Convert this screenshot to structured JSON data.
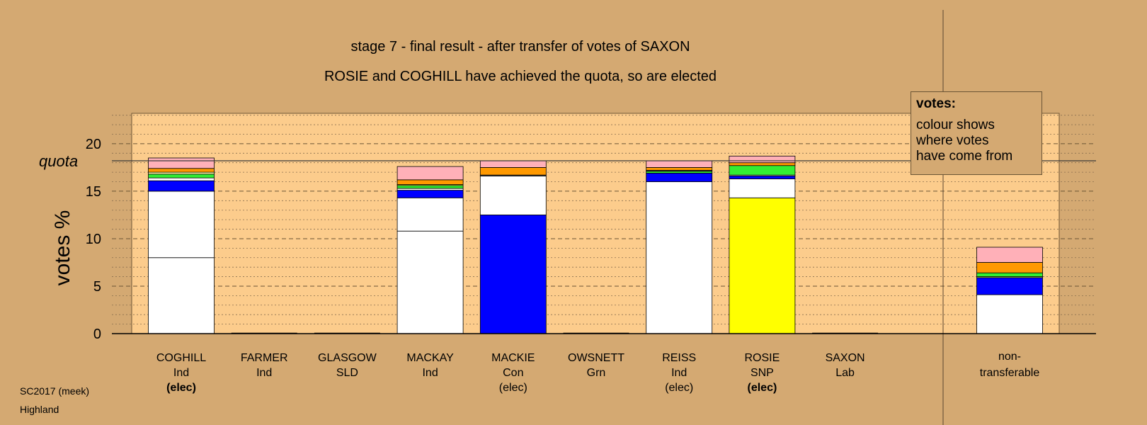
{
  "chart_data": {
    "type": "bar",
    "title": "stage 7 - final result - after transfer of votes of SAXON",
    "subtitle": "ROSIE and COGHILL have achieved the quota, so are elected",
    "ylabel": "votes %",
    "ylim": [
      0,
      23.2
    ],
    "yticks": [
      0,
      5,
      10,
      15,
      20
    ],
    "quota": 18.2,
    "quota_label": "quota",
    "stack_order_note_colors": {
      "white": "#ffffff",
      "blue": "#0000ff",
      "yellow": "#ffff00",
      "green": "#33ee33",
      "orange": "#ff9900",
      "pink": "#ffb0b8",
      "dark": "#555555"
    },
    "categories": [
      {
        "name": "COGHILL",
        "party": "Ind",
        "status": "(elec)",
        "status_bold": true,
        "segments": [
          {
            "color": "#ffffff",
            "value": 8.0
          },
          {
            "color": "#ffffff",
            "value": 7.0
          },
          {
            "color": "#0000ff",
            "value": 1.1
          },
          {
            "color": "#ffffff",
            "value": 0.3
          },
          {
            "color": "#33ee33",
            "value": 0.4
          },
          {
            "color": "#ffffaa",
            "value": 0.2
          },
          {
            "color": "#ff9900",
            "value": 0.4
          },
          {
            "color": "#ffb0b8",
            "value": 1.1
          }
        ]
      },
      {
        "name": "FARMER",
        "party": "Ind",
        "status": "",
        "status_bold": false,
        "segments": []
      },
      {
        "name": "GLASGOW",
        "party": "SLD",
        "status": "",
        "status_bold": false,
        "segments": []
      },
      {
        "name": "MACKAY",
        "party": "Ind",
        "status": "",
        "status_bold": false,
        "segments": [
          {
            "color": "#ffffff",
            "value": 10.8
          },
          {
            "color": "#ffffff",
            "value": 3.5
          },
          {
            "color": "#0000ff",
            "value": 0.8
          },
          {
            "color": "#ffffff",
            "value": 0.2
          },
          {
            "color": "#33ee33",
            "value": 0.3
          },
          {
            "color": "#ffff66",
            "value": 0.1
          },
          {
            "color": "#ff9900",
            "value": 0.5
          },
          {
            "color": "#ffb0b8",
            "value": 1.4
          }
        ]
      },
      {
        "name": "MACKIE",
        "party": "Con",
        "status": "(elec)",
        "status_bold": false,
        "segments": [
          {
            "color": "#0000ff",
            "value": 12.5
          },
          {
            "color": "#ffffff",
            "value": 4.1
          },
          {
            "color": "#555555",
            "value": 0.1
          },
          {
            "color": "#ff9900",
            "value": 0.8
          },
          {
            "color": "#ffb0b8",
            "value": 0.7
          }
        ]
      },
      {
        "name": "OWSNETT",
        "party": "Grn",
        "status": "",
        "status_bold": false,
        "segments": []
      },
      {
        "name": "REISS",
        "party": "Ind",
        "status": "(elec)",
        "status_bold": false,
        "segments": [
          {
            "color": "#ffffff",
            "value": 16.0
          },
          {
            "color": "#0000ff",
            "value": 0.9
          },
          {
            "color": "#33ee33",
            "value": 0.2
          },
          {
            "color": "#555555",
            "value": 0.1
          },
          {
            "color": "#ff9900",
            "value": 0.3
          },
          {
            "color": "#ffb0b8",
            "value": 0.7
          }
        ]
      },
      {
        "name": "ROSIE",
        "party": "SNP",
        "status": "(elec)",
        "status_bold": true,
        "segments": [
          {
            "color": "#ffff00",
            "value": 14.3
          },
          {
            "color": "#ffffff",
            "value": 2.0
          },
          {
            "color": "#0000ff",
            "value": 0.3
          },
          {
            "color": "#ffffff",
            "value": 0.1
          },
          {
            "color": "#33ee33",
            "value": 1.0
          },
          {
            "color": "#ff9900",
            "value": 0.3
          },
          {
            "color": "#ffb0b8",
            "value": 0.7
          }
        ]
      },
      {
        "name": "SAXON",
        "party": "Lab",
        "status": "",
        "status_bold": false,
        "segments": []
      }
    ],
    "nontransferable": {
      "label_line1": "non-",
      "label_line2": "transferable",
      "segments": [
        {
          "color": "#ffffff",
          "value": 4.1
        },
        {
          "color": "#0000ff",
          "value": 1.8
        },
        {
          "color": "#ffff66",
          "value": 0.1
        },
        {
          "color": "#33ee33",
          "value": 0.4
        },
        {
          "color": "#ff9900",
          "value": 1.1
        },
        {
          "color": "#ffb0b8",
          "value": 1.6
        }
      ]
    }
  },
  "legend": {
    "title": "votes:",
    "line1": "colour shows",
    "line2": "where votes",
    "line3": "have come from"
  },
  "footer": {
    "line1": "SC2017 (meek)",
    "line2": "Highland"
  },
  "colors": {
    "background": "#d4a972",
    "plot_area": "#fccc8c"
  }
}
